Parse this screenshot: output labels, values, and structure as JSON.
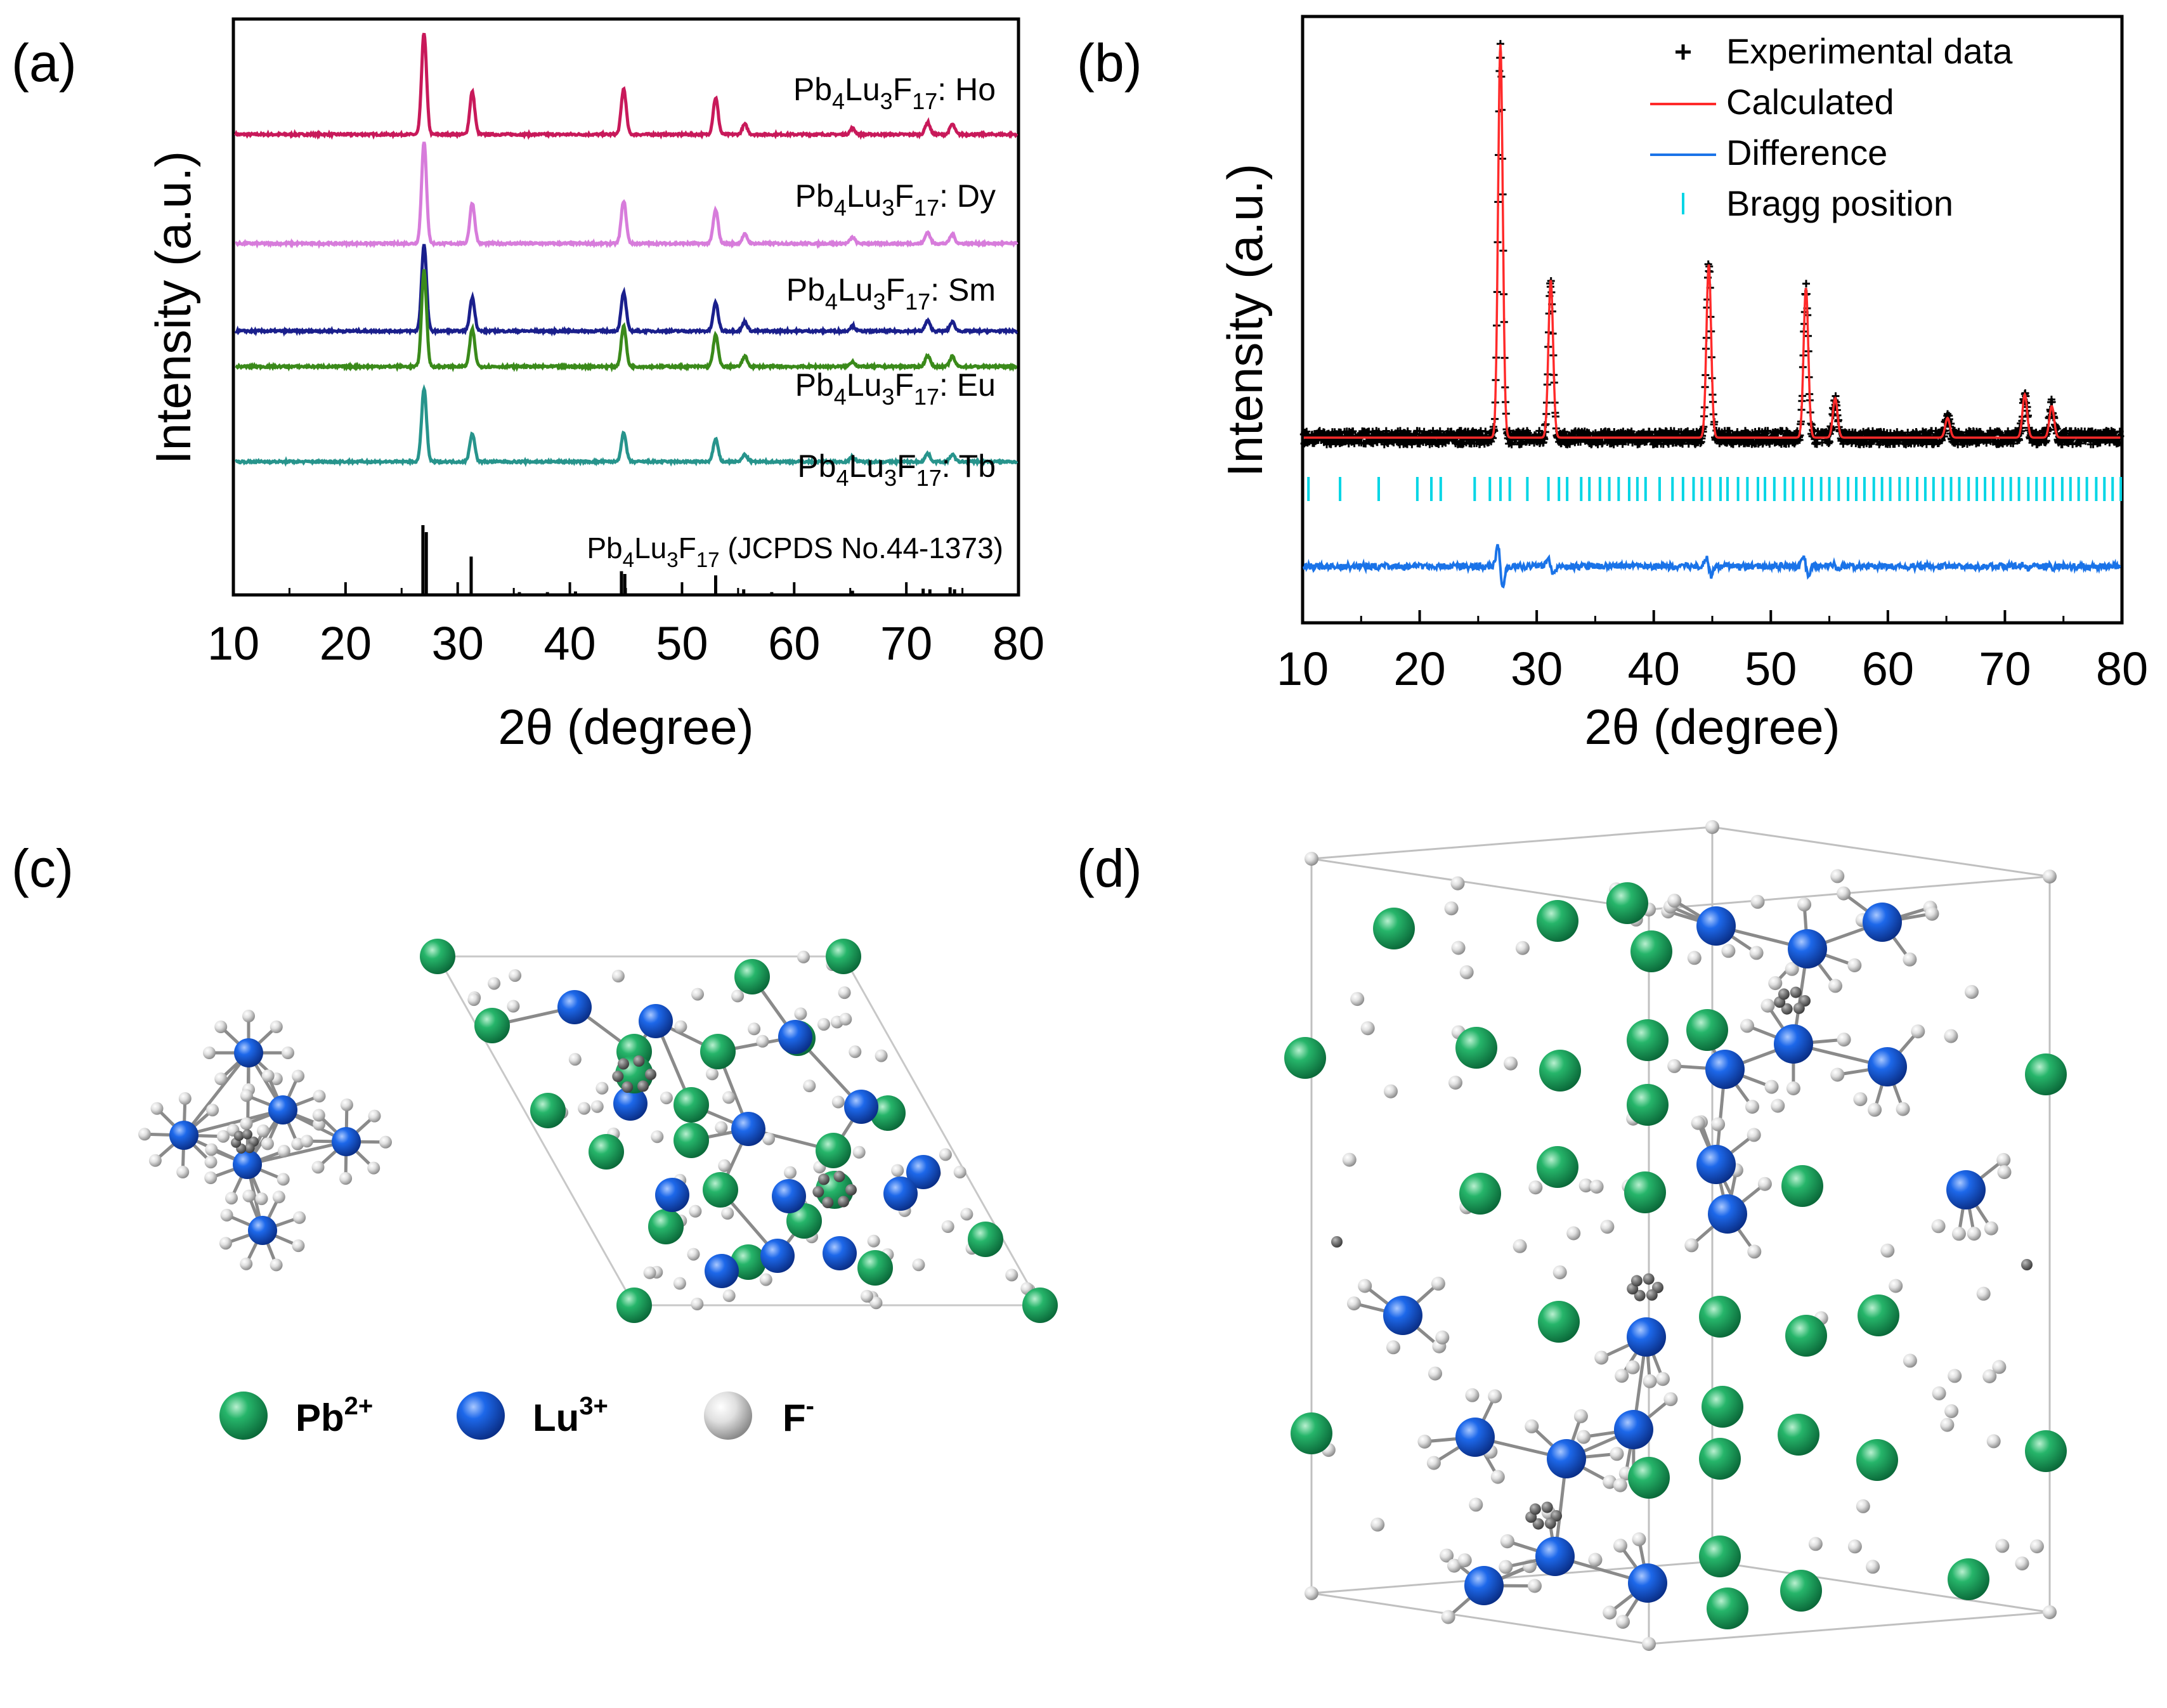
{
  "figure": {
    "panel_labels": [
      "(a)",
      "(b)",
      "(c)",
      "(d)"
    ]
  },
  "chart_data": [
    {
      "type": "line",
      "panel": "(a)",
      "xlabel": "2θ (degree)",
      "ylabel": "Intensity (a.u.)",
      "xlim": [
        10,
        80
      ],
      "xticks": [
        10,
        20,
        30,
        40,
        50,
        60,
        70,
        80
      ],
      "xtick_labels": [
        "10",
        "20",
        "30",
        "40",
        "50",
        "60",
        "70",
        "80"
      ],
      "series": [
        {
          "name": "Ho",
          "label_main": "Pb",
          "s1": "4",
          "m1": "Lu",
          "s2": "3",
          "m2": "F",
          "s3": "17",
          "label_suffix": ": Ho",
          "color": "#c8195a",
          "offset": 4,
          "peaks": [
            [
              27.0,
              1.0
            ],
            [
              31.3,
              0.42
            ],
            [
              44.8,
              0.45
            ],
            [
              53.0,
              0.36
            ],
            [
              55.6,
              0.1
            ],
            [
              65.2,
              0.06
            ],
            [
              71.9,
              0.12
            ],
            [
              74.1,
              0.1
            ]
          ]
        },
        {
          "name": "Dy",
          "label_main": "Pb",
          "s1": "4",
          "m1": "Lu",
          "s2": "3",
          "m2": "F",
          "s3": "17",
          "label_suffix": ": Dy",
          "color": "#d77cdb",
          "offset": 3,
          "peaks": [
            [
              27.0,
              1.0
            ],
            [
              31.3,
              0.4
            ],
            [
              44.8,
              0.42
            ],
            [
              53.0,
              0.33
            ],
            [
              55.6,
              0.09
            ],
            [
              65.2,
              0.06
            ],
            [
              71.9,
              0.11
            ],
            [
              74.1,
              0.09
            ]
          ]
        },
        {
          "name": "Sm",
          "label_main": "Pb",
          "s1": "4",
          "m1": "Lu",
          "s2": "3",
          "m2": "F",
          "s3": "17",
          "label_suffix": ": Sm",
          "color": "#1a1f8c",
          "offset": 2,
          "peaks": [
            [
              27.0,
              0.85
            ],
            [
              31.3,
              0.33
            ],
            [
              44.8,
              0.38
            ],
            [
              53.0,
              0.28
            ],
            [
              55.6,
              0.09
            ],
            [
              65.2,
              0.05
            ],
            [
              71.9,
              0.1
            ],
            [
              74.1,
              0.09
            ]
          ]
        },
        {
          "name": "Eu",
          "label_main": "Pb",
          "s1": "4",
          "m1": "Lu",
          "s2": "3",
          "m2": "F",
          "s3": "17",
          "label_suffix": ": Eu",
          "color": "#3a8a1a",
          "offset": 1,
          "peaks": [
            [
              27.0,
              0.95
            ],
            [
              31.3,
              0.37
            ],
            [
              44.8,
              0.4
            ],
            [
              53.0,
              0.31
            ],
            [
              55.6,
              0.1
            ],
            [
              65.2,
              0.05
            ],
            [
              71.9,
              0.11
            ],
            [
              74.1,
              0.1
            ]
          ]
        },
        {
          "name": "Tb",
          "label_main": "Pb",
          "s1": "4",
          "m1": "Lu",
          "s2": "3",
          "m2": "F",
          "s3": "17",
          "label_suffix": ": Tb",
          "color": "#27948c",
          "offset": 0,
          "peaks": [
            [
              27.0,
              0.72
            ],
            [
              31.3,
              0.28
            ],
            [
              44.8,
              0.28
            ],
            [
              53.0,
              0.22
            ],
            [
              55.6,
              0.07
            ],
            [
              65.2,
              0.05
            ],
            [
              71.9,
              0.08
            ],
            [
              74.1,
              0.07
            ]
          ]
        }
      ],
      "reference": {
        "label_main": "Pb",
        "s1": "4",
        "m1": "Lu",
        "s2": "3",
        "m2": "F",
        "s3": "17",
        "label_suffix": " (JCPDS No.44-1373)",
        "sticks": [
          [
            26.9,
            1.0
          ],
          [
            27.2,
            0.9
          ],
          [
            31.2,
            0.55
          ],
          [
            35.5,
            0.04
          ],
          [
            38.0,
            0.04
          ],
          [
            40.5,
            0.05
          ],
          [
            44.6,
            0.34
          ],
          [
            44.9,
            0.3
          ],
          [
            53.0,
            0.28
          ],
          [
            55.5,
            0.08
          ],
          [
            58.0,
            0.04
          ],
          [
            65.2,
            0.06
          ],
          [
            71.5,
            0.09
          ],
          [
            72.1,
            0.08
          ],
          [
            73.9,
            0.11
          ],
          [
            74.3,
            0.08
          ]
        ]
      }
    },
    {
      "type": "line",
      "panel": "(b)",
      "xlabel": "2θ (degree)",
      "ylabel": "Intensity (a.u.)",
      "xlim": [
        10,
        80
      ],
      "xticks": [
        10,
        20,
        30,
        40,
        50,
        60,
        70,
        80
      ],
      "xtick_labels": [
        "10",
        "20",
        "30",
        "40",
        "50",
        "60",
        "70",
        "80"
      ],
      "legend": [
        {
          "marker": "+",
          "label": "Experimental data",
          "color": "#000000"
        },
        {
          "marker": "line",
          "label": "Calculated",
          "color": "#ff2a2a"
        },
        {
          "marker": "line",
          "label": "Difference",
          "color": "#1a73e8"
        },
        {
          "marker": "|",
          "label": "Bragg position",
          "color": "#00d5e5"
        }
      ],
      "peaks": [
        [
          26.9,
          1.0
        ],
        [
          31.2,
          0.4
        ],
        [
          44.7,
          0.44
        ],
        [
          53.0,
          0.38
        ],
        [
          55.5,
          0.1
        ],
        [
          65.1,
          0.05
        ],
        [
          71.7,
          0.11
        ],
        [
          74.0,
          0.08
        ]
      ],
      "bragg_positions": [
        10.5,
        13.2,
        16.5,
        19.8,
        21.0,
        21.8,
        24.7,
        26.0,
        26.9,
        27.7,
        29.2,
        31.0,
        31.9,
        32.6,
        33.8,
        34.5,
        35.4,
        36.2,
        37.0,
        37.9,
        38.6,
        39.3,
        40.5,
        41.6,
        42.5,
        43.4,
        44.1,
        44.8,
        45.7,
        46.3,
        47.2,
        48.0,
        48.9,
        49.5,
        50.3,
        51.2,
        51.9,
        52.8,
        53.5,
        54.3,
        55.0,
        55.8,
        56.6,
        57.3,
        58.0,
        58.8,
        59.5,
        60.2,
        61.0,
        61.7,
        62.5,
        63.2,
        63.9,
        64.7,
        65.4,
        66.1,
        66.9,
        67.6,
        68.3,
        69.0,
        69.8,
        70.5,
        71.2,
        72.0,
        72.7,
        73.4,
        74.1,
        74.9,
        75.6,
        76.3,
        77.0,
        77.8,
        78.5,
        79.2,
        79.9
      ]
    }
  ],
  "structure_legend": {
    "pb": {
      "base": "Pb",
      "sup": "2+",
      "color": "#18a060"
    },
    "lu": {
      "base": "Lu",
      "sup": "3+",
      "color": "#1560e0"
    },
    "f": {
      "base": "F",
      "sup": "-",
      "color": "#d8d8d8"
    }
  }
}
